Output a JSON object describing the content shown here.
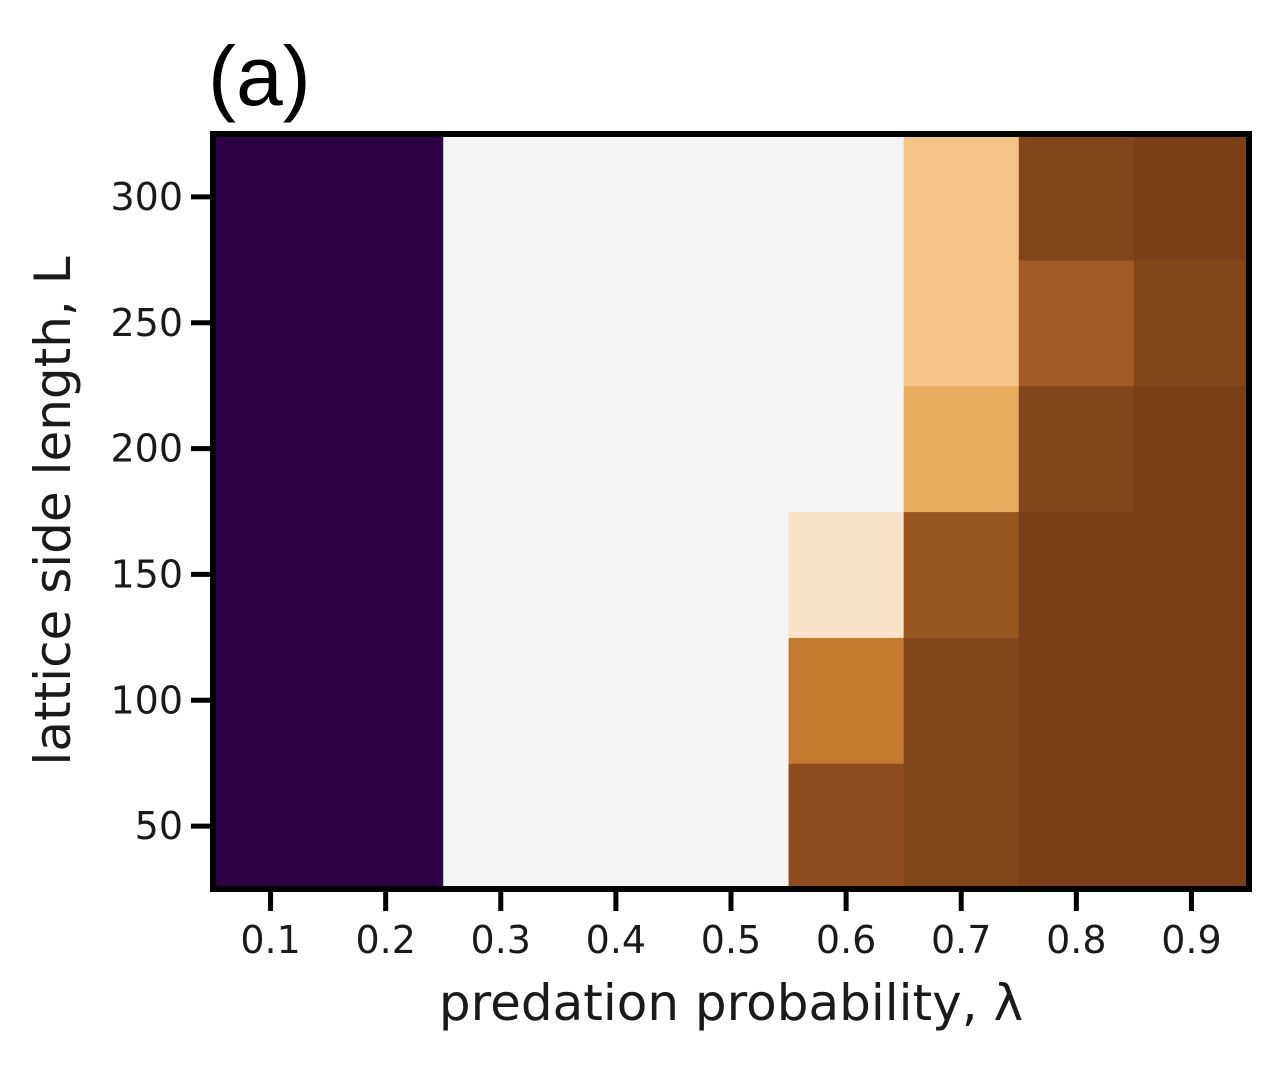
{
  "panel_label": "(a)",
  "chart_data": {
    "type": "heatmap",
    "title": "",
    "xlabel": "predation probability, λ",
    "ylabel": "lattice side length, L",
    "x": [
      0.1,
      0.2,
      0.3,
      0.4,
      0.5,
      0.6,
      0.7,
      0.8,
      0.9
    ],
    "y": [
      50,
      100,
      150,
      200,
      250,
      300
    ],
    "xlim": [
      0.05,
      0.95
    ],
    "ylim": [
      25,
      325
    ],
    "xticks": [
      "0.1",
      "0.2",
      "0.3",
      "0.4",
      "0.5",
      "0.6",
      "0.7",
      "0.8",
      "0.9"
    ],
    "yticks": [
      "50",
      "100",
      "150",
      "200",
      "250",
      "300"
    ],
    "colorscale": "PuOr (dark purple = low, white = mid, brown = high)",
    "colorbar": false,
    "grid": false,
    "cells_row_order": "y ascending (L = 50 first)",
    "cell_colors": [
      [
        "#2c0244",
        "#2c0244",
        "#f4f4f4",
        "#f4f4f4",
        "#f4f4f4",
        "#8d4b1e",
        "#83461b",
        "#7a3f18",
        "#7a3f18"
      ],
      [
        "#2c0244",
        "#2c0244",
        "#f4f4f4",
        "#f4f4f4",
        "#f4f4f4",
        "#c47a2e",
        "#83461b",
        "#7a3f18",
        "#7a3f18"
      ],
      [
        "#2c0244",
        "#2c0244",
        "#f4f4f4",
        "#f4f4f4",
        "#f4f4f4",
        "#f8e3c8",
        "#98561f",
        "#7a3f18",
        "#7a3f18"
      ],
      [
        "#2c0244",
        "#2c0244",
        "#f4f4f4",
        "#f4f4f4",
        "#f4f4f4",
        "#f4f4f4",
        "#e8ab5f",
        "#83461b",
        "#7a3f18"
      ],
      [
        "#2c0244",
        "#2c0244",
        "#f4f4f4",
        "#f4f4f4",
        "#f4f4f4",
        "#f4f4f4",
        "#f3c486",
        "#a35a24",
        "#83461b"
      ],
      [
        "#2c0244",
        "#2c0244",
        "#f4f4f4",
        "#f4f4f4",
        "#f4f4f4",
        "#f4f4f4",
        "#f3c486",
        "#83461b",
        "#7a3f18"
      ]
    ]
  }
}
